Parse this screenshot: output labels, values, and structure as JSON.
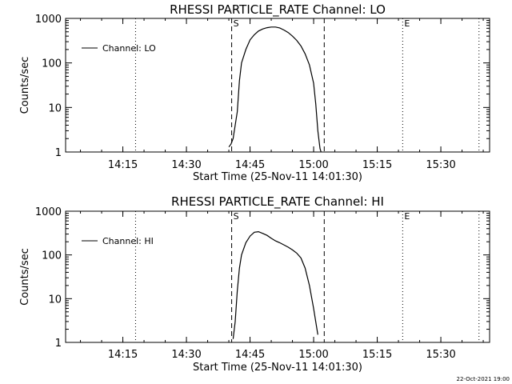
{
  "chart_data": [
    {
      "type": "line",
      "title": "RHESSI PARTICLE_RATE Channel: LO",
      "xlabel": "Start Time (25-Nov-11 14:01:30)",
      "ylabel": "Counts/sec",
      "yscale": "log",
      "ylim": [
        1,
        1000
      ],
      "xlim": [
        "14:01:30",
        "15:41:30"
      ],
      "x_ticks": [
        "14:15",
        "14:30",
        "14:45",
        "15:00",
        "15:15",
        "15:30"
      ],
      "y_ticks": [
        "1",
        "10",
        "100",
        "1000"
      ],
      "legend": {
        "label": "Channel: LO",
        "position": "top-left"
      },
      "markers": [
        {
          "label": "S",
          "time": "14:40:40",
          "style": "dashed"
        },
        {
          "label": "",
          "time": "15:02:30",
          "style": "dashed"
        },
        {
          "label": "E",
          "time": "15:21:00",
          "style": "dotted"
        },
        {
          "label": "",
          "time": "14:18:00",
          "style": "dotted"
        },
        {
          "label": "",
          "time": "15:39:00",
          "style": "dotted"
        }
      ],
      "series": [
        {
          "name": "Channel: LO",
          "x": [
            "14:40:00",
            "14:40:30",
            "14:41:00",
            "14:42:00",
            "14:42:30",
            "14:43:00",
            "14:44:00",
            "14:45:00",
            "14:46:00",
            "14:47:00",
            "14:48:00",
            "14:49:00",
            "14:50:00",
            "14:51:00",
            "14:52:00",
            "14:53:00",
            "14:54:00",
            "14:55:00",
            "14:56:00",
            "14:57:00",
            "14:58:00",
            "14:59:00",
            "15:00:00",
            "15:00:30",
            "15:01:00",
            "15:01:30",
            "15:01:45"
          ],
          "values": [
            1.3,
            1.5,
            2,
            8,
            40,
            100,
            200,
            330,
            430,
            520,
            580,
            620,
            640,
            640,
            610,
            550,
            480,
            400,
            320,
            240,
            160,
            90,
            35,
            12,
            3,
            1.2,
            1
          ]
        }
      ]
    },
    {
      "type": "line",
      "title": "RHESSI PARTICLE_RATE Channel: HI",
      "xlabel": "Start Time (25-Nov-11 14:01:30)",
      "ylabel": "Counts/sec",
      "yscale": "log",
      "ylim": [
        1,
        1000
      ],
      "xlim": [
        "14:01:30",
        "15:41:30"
      ],
      "x_ticks": [
        "14:15",
        "14:30",
        "14:45",
        "15:00",
        "15:15",
        "15:30"
      ],
      "y_ticks": [
        "1",
        "10",
        "100",
        "1000"
      ],
      "legend": {
        "label": "Channel: HI",
        "position": "top-left"
      },
      "markers": [
        {
          "label": "S",
          "time": "14:40:40",
          "style": "dashed"
        },
        {
          "label": "",
          "time": "15:02:30",
          "style": "dashed"
        },
        {
          "label": "E",
          "time": "15:21:00",
          "style": "dotted"
        },
        {
          "label": "",
          "time": "14:18:00",
          "style": "dotted"
        },
        {
          "label": "",
          "time": "15:39:00",
          "style": "dotted"
        }
      ],
      "series": [
        {
          "name": "Channel: HI",
          "x": [
            "14:41:00",
            "14:41:30",
            "14:42:00",
            "14:42:30",
            "14:43:00",
            "14:44:00",
            "14:45:00",
            "14:46:00",
            "14:47:00",
            "14:48:00",
            "14:49:00",
            "14:50:00",
            "14:51:00",
            "14:52:00",
            "14:53:00",
            "14:54:00",
            "14:55:00",
            "14:56:00",
            "14:57:00",
            "14:58:00",
            "14:59:00",
            "15:00:00",
            "15:01:00"
          ],
          "values": [
            1.2,
            3,
            15,
            50,
            100,
            190,
            270,
            330,
            340,
            310,
            280,
            240,
            210,
            190,
            170,
            150,
            130,
            110,
            85,
            50,
            20,
            6,
            1.5
          ]
        }
      ]
    }
  ],
  "footer": {
    "timestamp": "22-Oct-2021 19:00"
  }
}
